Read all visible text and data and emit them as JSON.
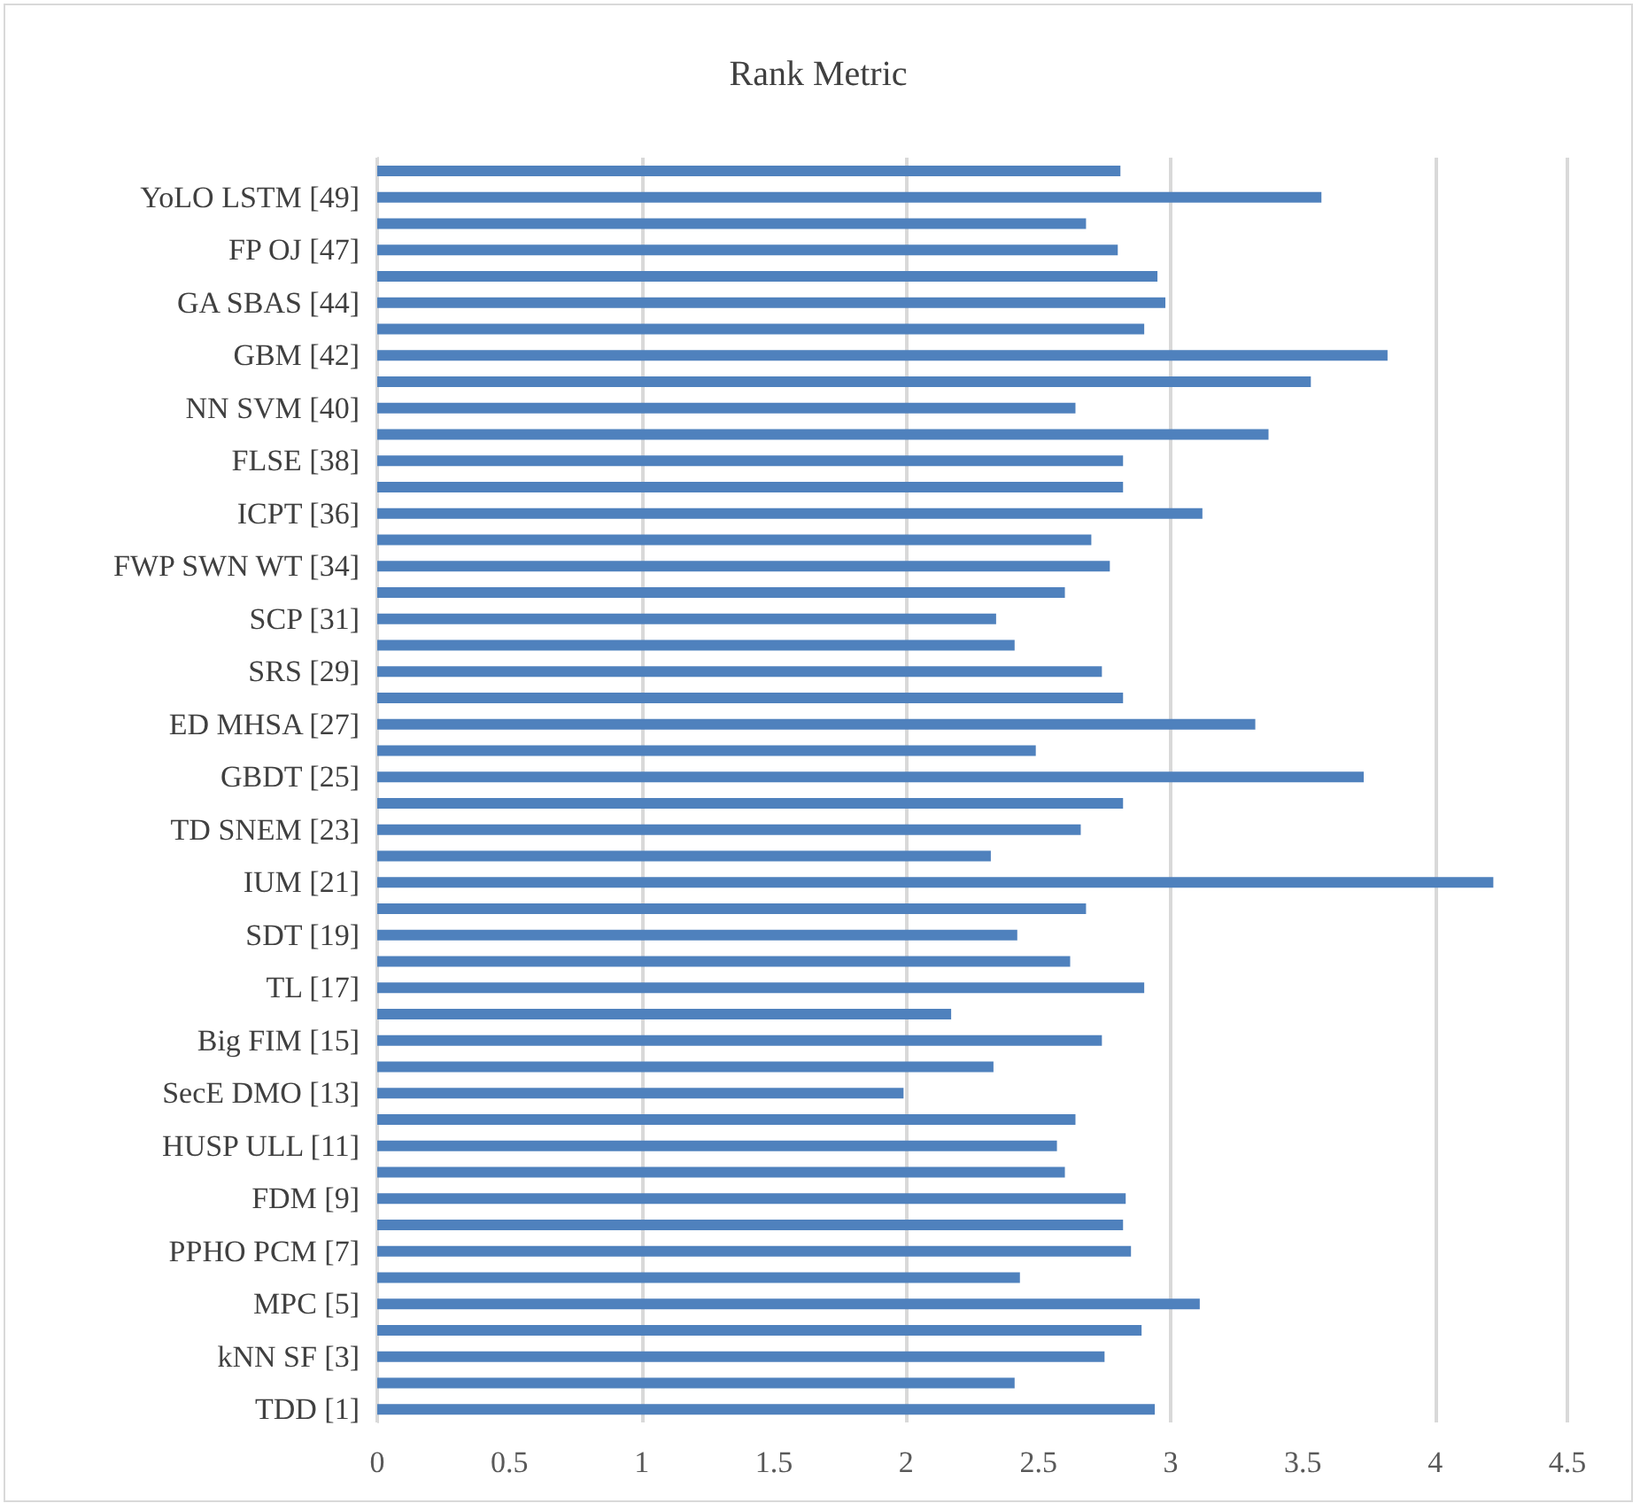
{
  "chart_data": {
    "type": "bar",
    "orientation": "horizontal",
    "title": "Rank Metric",
    "categories": [
      null,
      "YoLO LSTM [49]",
      null,
      "FP OJ [47]",
      null,
      "GA SBAS [44]",
      null,
      "GBM [42]",
      null,
      "NN SVM [40]",
      null,
      "FLSE [38]",
      null,
      "ICPT [36]",
      null,
      "FWP SWN WT [34]",
      null,
      "SCP [31]",
      null,
      "SRS [29]",
      null,
      "ED MHSA [27]",
      null,
      "GBDT [25]",
      null,
      "TD SNEM [23]",
      null,
      "IUM [21]",
      null,
      "SDT [19]",
      null,
      "TL [17]",
      null,
      "Big FIM [15]",
      null,
      "SecE DMO [13]",
      null,
      "HUSP ULL [11]",
      null,
      "FDM [9]",
      null,
      "PPHO PCM [7]",
      null,
      "MPC [5]",
      null,
      "kNN SF [3]",
      null,
      "TDD [1]"
    ],
    "values": [
      2.81,
      3.57,
      2.68,
      2.8,
      2.95,
      2.98,
      2.9,
      3.82,
      3.53,
      2.64,
      3.37,
      2.82,
      2.82,
      3.12,
      2.7,
      2.77,
      2.6,
      2.34,
      2.41,
      2.74,
      2.82,
      3.32,
      2.49,
      3.73,
      2.82,
      2.66,
      2.32,
      4.22,
      2.68,
      2.42,
      2.62,
      2.9,
      2.17,
      2.74,
      2.33,
      1.99,
      2.64,
      2.57,
      2.6,
      2.83,
      2.82,
      2.85,
      2.43,
      3.11,
      2.89,
      2.75,
      2.41,
      2.94
    ],
    "color": "#4f81bd",
    "xlim": [
      0,
      4.5
    ],
    "xticks": [
      0,
      0.5,
      1,
      1.5,
      2,
      2.5,
      3,
      3.5,
      4,
      4.5
    ],
    "grid": "x"
  }
}
